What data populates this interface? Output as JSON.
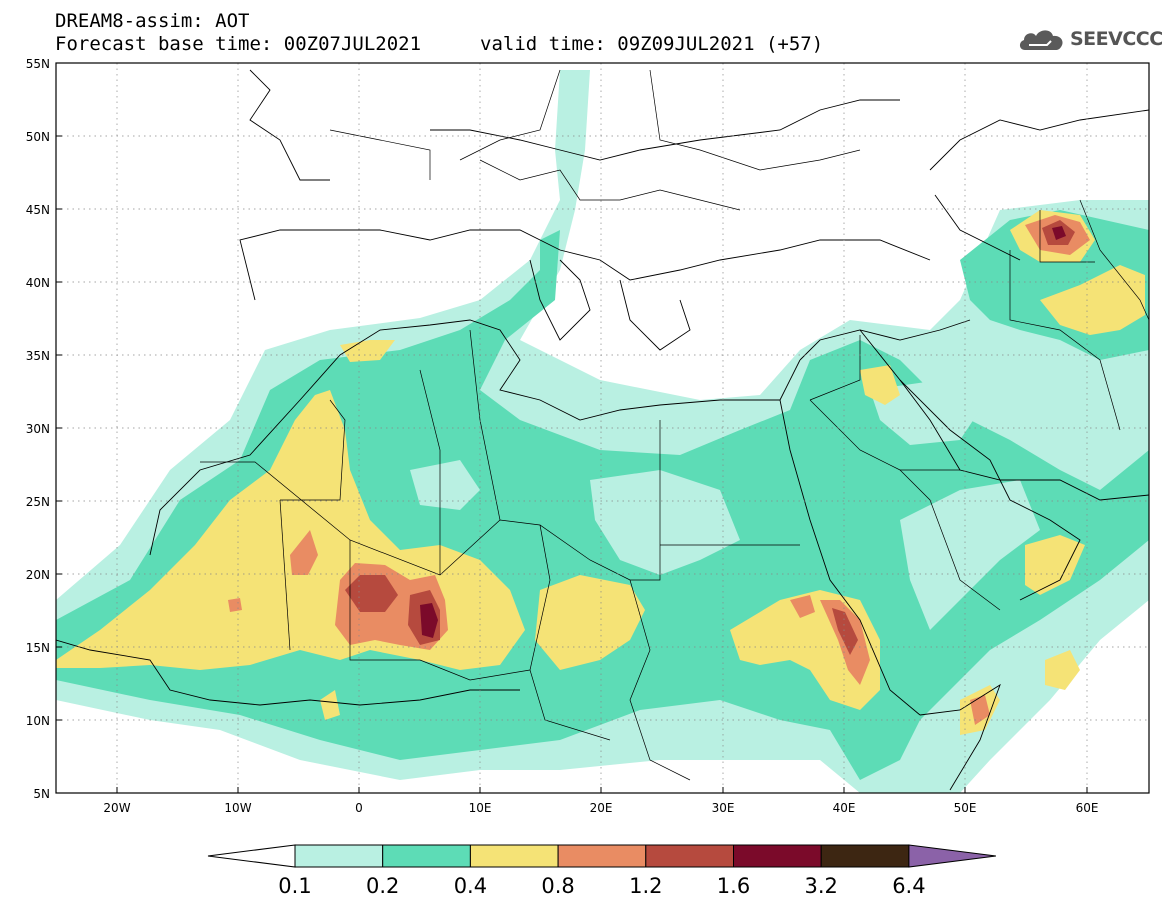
{
  "header": {
    "title": "DREAM8-assim: AOT",
    "base_time": "Forecast base time: 00Z07JUL2021",
    "valid_time": "valid time: 09Z09JUL2021 (+57)"
  },
  "logo": {
    "text": "SEEVCCC",
    "icon": "cloud-icon"
  },
  "map": {
    "lon_range": [
      -25,
      65
    ],
    "lat_range": [
      5,
      55
    ],
    "lat_ticks": [
      "55N",
      "50N",
      "45N",
      "40N",
      "35N",
      "30N",
      "25N",
      "20N",
      "15N",
      "10N",
      "5N"
    ],
    "lon_ticks": [
      "20W",
      "10W",
      "0",
      "10E",
      "20E",
      "30E",
      "40E",
      "50E",
      "60E"
    ]
  },
  "colorbar": {
    "labels": [
      "0.1",
      "0.2",
      "0.4",
      "0.8",
      "1.2",
      "1.6",
      "3.2",
      "6.4"
    ],
    "colors": [
      "#ffffff",
      "#b9f0e2",
      "#5ddcb6",
      "#f5e376",
      "#e98c63",
      "#b64a3e",
      "#7b0a2a",
      "#3d2612",
      "#8b62a8"
    ]
  }
}
